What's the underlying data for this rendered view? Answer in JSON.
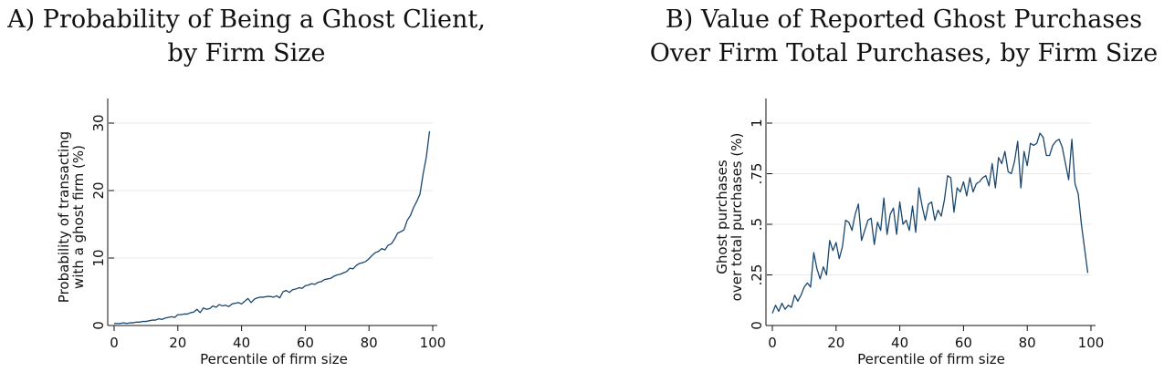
{
  "colors": {
    "series": "#1a476f",
    "grid": "#e8e8e8",
    "axis": "#111111"
  },
  "chart_data": [
    {
      "type": "line",
      "title_lines": [
        "A) Probability of Being a Ghost Client,",
        "by Firm Size"
      ],
      "xlabel": "Percentile of firm size",
      "ylabel_lines": [
        "Probability of transacting",
        "with a ghost firm (%)"
      ],
      "xlim": [
        0,
        100
      ],
      "ylim": [
        0,
        30
      ],
      "xticks": [
        0,
        20,
        40,
        60,
        80,
        100
      ],
      "yticks": [
        0,
        10,
        20,
        30
      ],
      "ytick_labels": [
        "0",
        "10",
        "20",
        "30"
      ],
      "grid": true,
      "x": [
        0,
        1,
        2,
        3,
        4,
        5,
        6,
        7,
        8,
        9,
        10,
        11,
        12,
        13,
        14,
        15,
        16,
        17,
        18,
        19,
        20,
        21,
        22,
        23,
        24,
        25,
        26,
        27,
        28,
        29,
        30,
        31,
        32,
        33,
        34,
        35,
        36,
        37,
        38,
        39,
        40,
        41,
        42,
        43,
        44,
        45,
        46,
        47,
        48,
        49,
        50,
        51,
        52,
        53,
        54,
        55,
        56,
        57,
        58,
        59,
        60,
        61,
        62,
        63,
        64,
        65,
        66,
        67,
        68,
        69,
        70,
        71,
        72,
        73,
        74,
        75,
        76,
        77,
        78,
        79,
        80,
        81,
        82,
        83,
        84,
        85,
        86,
        87,
        88,
        89,
        90,
        91,
        92,
        93,
        94,
        95,
        96,
        97,
        98,
        99
      ],
      "y": [
        0.3,
        0.3,
        0.3,
        0.4,
        0.3,
        0.4,
        0.4,
        0.5,
        0.5,
        0.6,
        0.6,
        0.7,
        0.8,
        0.8,
        1.0,
        0.9,
        1.1,
        1.2,
        1.3,
        1.2,
        1.6,
        1.6,
        1.7,
        1.7,
        1.9,
        2.0,
        2.4,
        1.9,
        2.6,
        2.4,
        2.5,
        2.9,
        2.7,
        3.1,
        2.9,
        3.0,
        2.8,
        3.2,
        3.3,
        3.4,
        3.2,
        3.6,
        4.0,
        3.4,
        3.9,
        4.1,
        4.2,
        4.2,
        4.3,
        4.3,
        4.2,
        4.4,
        4.1,
        5.0,
        5.2,
        4.9,
        5.3,
        5.4,
        5.6,
        5.5,
        5.9,
        6.0,
        6.2,
        6.1,
        6.4,
        6.5,
        6.8,
        6.9,
        7.0,
        7.3,
        7.5,
        7.6,
        7.8,
        8.0,
        8.5,
        8.4,
        8.9,
        9.2,
        9.3,
        9.5,
        9.9,
        10.4,
        10.8,
        11.0,
        11.4,
        11.2,
        11.9,
        12.1,
        12.8,
        13.7,
        13.9,
        14.2,
        15.6,
        16.3,
        17.5,
        18.4,
        19.5,
        22.5,
        25.0,
        28.8
      ]
    },
    {
      "type": "line",
      "title_lines": [
        "B) Value of Reported Ghost Purchases",
        "Over Firm Total Purchases, by Firm Size"
      ],
      "xlabel": "Percentile of firm size",
      "ylabel_lines": [
        "Ghost purchases",
        "over total purchases (%)"
      ],
      "xlim": [
        0,
        100
      ],
      "ylim": [
        0,
        1
      ],
      "xticks": [
        0,
        20,
        40,
        60,
        80,
        100
      ],
      "yticks": [
        0,
        0.25,
        0.5,
        0.75,
        1
      ],
      "ytick_labels": [
        "0",
        ".25",
        ".5",
        ".75",
        "1"
      ],
      "grid": true,
      "x": [
        0,
        1,
        2,
        3,
        4,
        5,
        6,
        7,
        8,
        9,
        10,
        11,
        12,
        13,
        14,
        15,
        16,
        17,
        18,
        19,
        20,
        21,
        22,
        23,
        24,
        25,
        26,
        27,
        28,
        29,
        30,
        31,
        32,
        33,
        34,
        35,
        36,
        37,
        38,
        39,
        40,
        41,
        42,
        43,
        44,
        45,
        46,
        47,
        48,
        49,
        50,
        51,
        52,
        53,
        54,
        55,
        56,
        57,
        58,
        59,
        60,
        61,
        62,
        63,
        64,
        65,
        66,
        67,
        68,
        69,
        70,
        71,
        72,
        73,
        74,
        75,
        76,
        77,
        78,
        79,
        80,
        81,
        82,
        83,
        84,
        85,
        86,
        87,
        88,
        89,
        90,
        91,
        92,
        93,
        94,
        95,
        96,
        97,
        98,
        99
      ],
      "y": [
        0.06,
        0.1,
        0.07,
        0.11,
        0.08,
        0.1,
        0.09,
        0.15,
        0.12,
        0.15,
        0.19,
        0.21,
        0.19,
        0.36,
        0.28,
        0.23,
        0.29,
        0.25,
        0.42,
        0.37,
        0.41,
        0.33,
        0.39,
        0.52,
        0.51,
        0.47,
        0.55,
        0.6,
        0.42,
        0.47,
        0.52,
        0.53,
        0.4,
        0.51,
        0.47,
        0.63,
        0.45,
        0.55,
        0.58,
        0.45,
        0.61,
        0.5,
        0.52,
        0.47,
        0.59,
        0.46,
        0.68,
        0.59,
        0.52,
        0.6,
        0.61,
        0.52,
        0.57,
        0.54,
        0.62,
        0.74,
        0.73,
        0.56,
        0.68,
        0.66,
        0.71,
        0.64,
        0.73,
        0.66,
        0.7,
        0.71,
        0.73,
        0.74,
        0.69,
        0.8,
        0.68,
        0.83,
        0.8,
        0.86,
        0.76,
        0.75,
        0.81,
        0.91,
        0.68,
        0.86,
        0.79,
        0.9,
        0.89,
        0.9,
        0.95,
        0.93,
        0.84,
        0.84,
        0.89,
        0.91,
        0.92,
        0.88,
        0.8,
        0.72,
        0.92,
        0.7,
        0.65,
        0.5,
        0.38,
        0.26
      ]
    }
  ]
}
